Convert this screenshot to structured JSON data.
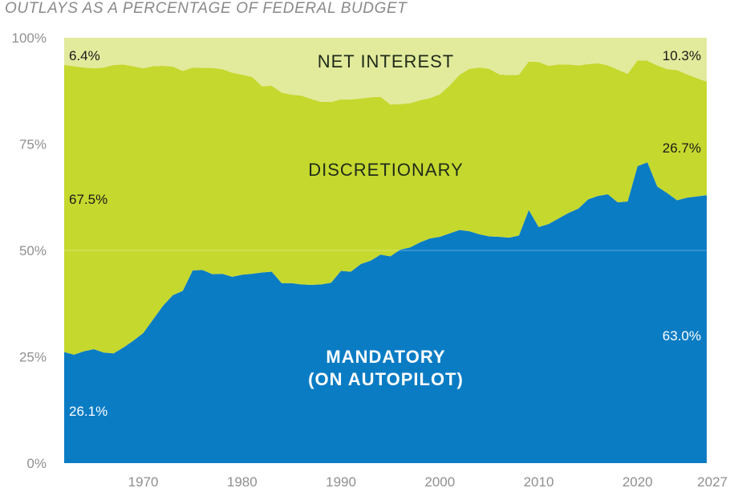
{
  "chart_data": {
    "type": "area",
    "stacked": true,
    "title": "OUTLAYS AS A PERCENTAGE OF FEDERAL BUDGET",
    "xlabel": "",
    "ylabel": "",
    "xlim": [
      1962,
      2027
    ],
    "ylim": [
      0,
      100
    ],
    "x_ticks": [
      "1970",
      "1980",
      "1990",
      "2000",
      "2010",
      "2020",
      "2027"
    ],
    "x_tick_values": [
      1970,
      1980,
      1990,
      2000,
      2010,
      2020,
      2027
    ],
    "y_ticks": [
      "0%",
      "25%",
      "50%",
      "75%",
      "100%"
    ],
    "y_tick_values": [
      0,
      25,
      50,
      75,
      100
    ],
    "x": [
      1962,
      1963,
      1964,
      1965,
      1966,
      1967,
      1968,
      1969,
      1970,
      1971,
      1972,
      1973,
      1974,
      1975,
      1976,
      1977,
      1978,
      1979,
      1980,
      1981,
      1982,
      1983,
      1984,
      1985,
      1986,
      1987,
      1988,
      1989,
      1990,
      1991,
      1992,
      1993,
      1994,
      1995,
      1996,
      1997,
      1998,
      1999,
      2000,
      2001,
      2002,
      2003,
      2004,
      2005,
      2006,
      2007,
      2008,
      2009,
      2010,
      2011,
      2012,
      2013,
      2014,
      2015,
      2016,
      2017,
      2018,
      2019,
      2020,
      2021,
      2022,
      2023,
      2024,
      2025,
      2026,
      2027
    ],
    "series": [
      {
        "key": "mandatory",
        "values": [
          26.1,
          25.5,
          26.3,
          26.8,
          26.0,
          25.8,
          27.2,
          28.8,
          30.6,
          33.8,
          37.0,
          39.5,
          40.5,
          45.3,
          45.4,
          44.4,
          44.5,
          43.8,
          44.3,
          44.5,
          44.8,
          45.0,
          42.3,
          42.3,
          42.0,
          41.9,
          42.0,
          42.4,
          45.2,
          45.0,
          46.8,
          47.6,
          49.0,
          48.6,
          50.2,
          50.7,
          51.9,
          52.8,
          53.2,
          54.0,
          54.8,
          54.5,
          53.8,
          53.3,
          53.2,
          53.0,
          53.5,
          59.5,
          55.5,
          56.2,
          57.5,
          58.8,
          59.8,
          62.0,
          62.8,
          63.2,
          61.3,
          61.5,
          69.8,
          70.7,
          65.0,
          63.5,
          61.8,
          62.4,
          62.7,
          63.0
        ],
        "color": "#0a7cc4"
      },
      {
        "key": "discretionary",
        "values": [
          67.5,
          67.8,
          66.7,
          66.0,
          67.0,
          67.8,
          66.5,
          64.5,
          62.2,
          59.5,
          56.4,
          53.7,
          51.7,
          47.7,
          47.5,
          48.5,
          48.1,
          48.0,
          47.0,
          46.3,
          43.8,
          43.7,
          44.8,
          44.3,
          44.4,
          43.7,
          42.9,
          42.5,
          40.3,
          40.5,
          38.9,
          38.4,
          37.1,
          35.7,
          34.2,
          33.9,
          33.4,
          33.0,
          33.5,
          34.8,
          36.5,
          38.2,
          39.2,
          39.4,
          38.2,
          38.2,
          37.8,
          34.9,
          38.8,
          37.2,
          36.2,
          34.9,
          33.7,
          31.8,
          31.2,
          30.3,
          31.2,
          30.0,
          24.9,
          23.9,
          28.5,
          29.1,
          30.6,
          29.0,
          27.8,
          26.7
        ],
        "color": "#c5d82e"
      },
      {
        "key": "net_interest",
        "values": [
          6.4,
          6.7,
          7.0,
          7.2,
          7.0,
          6.4,
          6.3,
          6.7,
          7.2,
          6.7,
          6.6,
          6.8,
          7.8,
          7.0,
          7.1,
          7.1,
          7.4,
          8.2,
          8.7,
          9.2,
          11.4,
          11.3,
          12.9,
          13.4,
          13.6,
          14.4,
          15.1,
          15.1,
          14.5,
          14.5,
          14.3,
          14.0,
          13.9,
          15.7,
          15.6,
          15.4,
          14.7,
          14.2,
          13.3,
          11.2,
          8.7,
          7.3,
          7.0,
          7.3,
          8.6,
          8.8,
          8.7,
          5.6,
          5.7,
          6.6,
          6.3,
          6.3,
          6.5,
          6.2,
          6.0,
          6.5,
          7.5,
          8.5,
          5.3,
          5.4,
          6.5,
          7.4,
          7.6,
          8.6,
          9.5,
          10.3
        ],
        "color": "#e2ea9c"
      }
    ],
    "area_labels": {
      "net_interest": "NET INTEREST",
      "discretionary": "DISCRETIONARY",
      "mandatory_line1": "MANDATORY",
      "mandatory_line2": "(ON AUTOPILOT)"
    },
    "value_labels": {
      "net_interest_start": "6.4%",
      "net_interest_end": "10.3%",
      "discretionary_start": "67.5%",
      "discretionary_end": "26.7%",
      "mandatory_start": "26.1%",
      "mandatory_end": "63.0%"
    },
    "grid": "horizontal-at-50",
    "legend": "none"
  }
}
